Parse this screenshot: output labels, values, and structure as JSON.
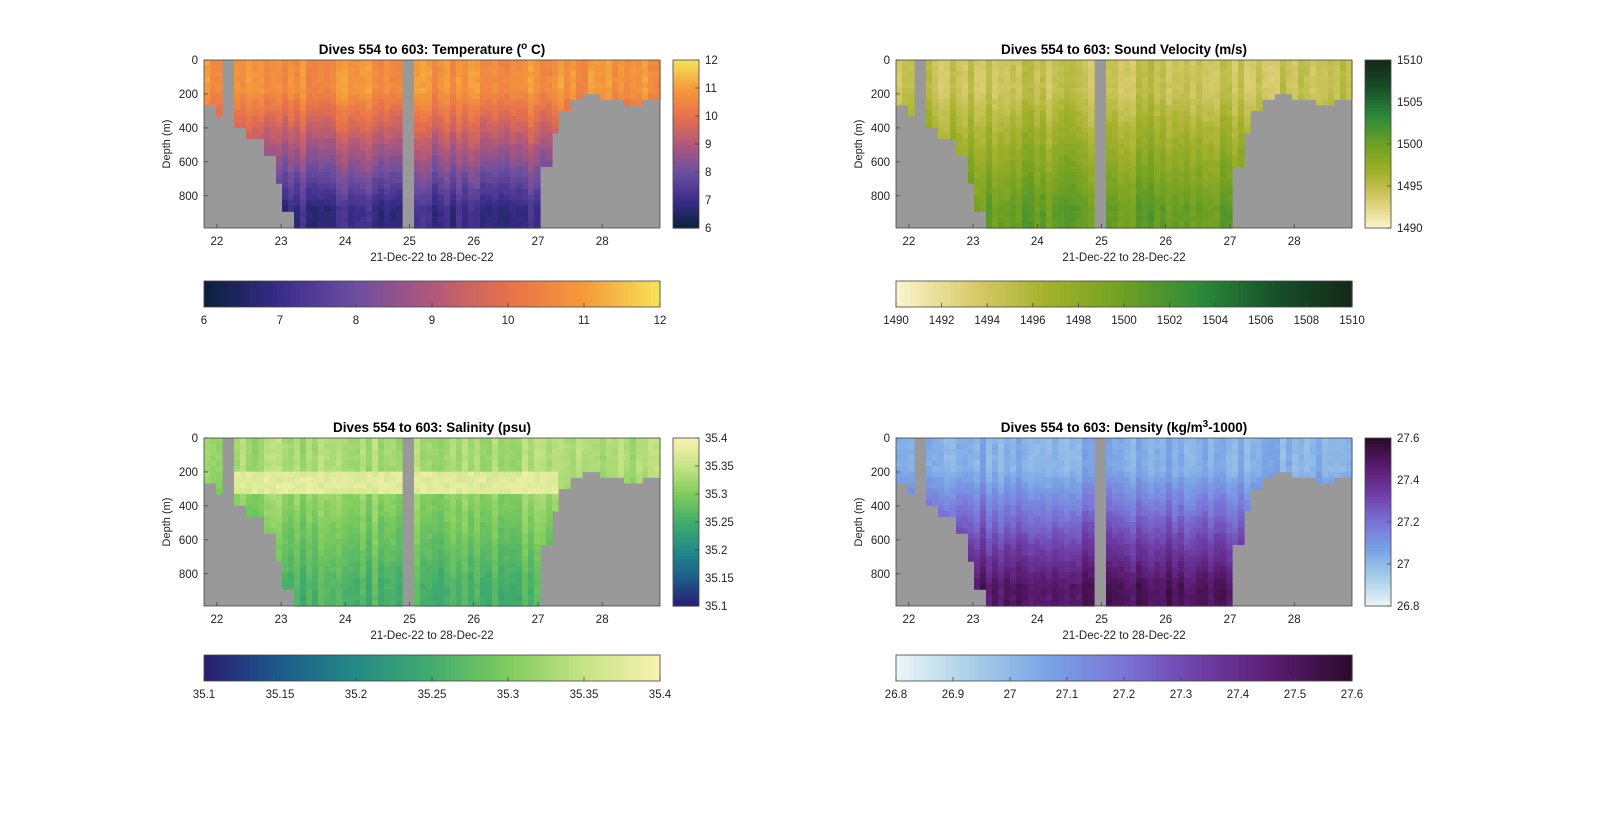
{
  "figure": {
    "background": "#ffffff",
    "nodata_color": "#999999"
  },
  "chart_data": [
    {
      "type": "heatmap",
      "title_main": "Dives 554 to 603: Temperature (",
      "title_sup": "o",
      "title_tail": " C)",
      "xlabel": "21-Dec-22 to 28-Dec-22",
      "ylabel": "Depth (m)",
      "xticks": [
        "22",
        "23",
        "24",
        "25",
        "26",
        "27",
        "28"
      ],
      "yticks": [
        "0",
        "200",
        "400",
        "600",
        "800"
      ],
      "ylim": [
        0,
        990
      ],
      "colormap": [
        "#08203a",
        "#3a2c8a",
        "#6c4ea0",
        "#b0587a",
        "#e8714c",
        "#f59a3a",
        "#f6e25a"
      ],
      "clim": [
        6,
        12
      ],
      "side_colorbar_ticks": [
        "12",
        "11",
        "10",
        "9",
        "8",
        "7",
        "6"
      ],
      "bottom_colorbar_ticks": [
        "6",
        "7",
        "8",
        "9",
        "10",
        "11",
        "12"
      ],
      "surface_value": 10.8,
      "deep_value": 7.0
    },
    {
      "type": "heatmap",
      "title_main": "Dives 554 to 603: Sound Velocity (m/s)",
      "title_sup": "",
      "title_tail": "",
      "xlabel": "21-Dec-22 to 28-Dec-22",
      "ylabel": "Depth (m)",
      "xticks": [
        "22",
        "23",
        "24",
        "25",
        "26",
        "27",
        "28"
      ],
      "yticks": [
        "0",
        "200",
        "400",
        "600",
        "800"
      ],
      "ylim": [
        0,
        990
      ],
      "colormap": [
        "#fcf5cf",
        "#d9cc6e",
        "#a3b12a",
        "#6fa022",
        "#2d8a3a",
        "#16502a",
        "#142817"
      ],
      "clim": [
        1490,
        1510
      ],
      "side_colorbar_ticks": [
        "1510",
        "1505",
        "1500",
        "1495",
        "1490"
      ],
      "bottom_colorbar_ticks": [
        "1490",
        "1492",
        "1494",
        "1496",
        "1498",
        "1500",
        "1502",
        "1504",
        "1506",
        "1508",
        "1510"
      ],
      "surface_value": 1494.5,
      "deep_value": 1500.5
    },
    {
      "type": "heatmap",
      "title_main": "Dives 554 to 603: Salinity (psu)",
      "title_sup": "",
      "title_tail": "",
      "xlabel": "21-Dec-22 to 28-Dec-22",
      "ylabel": "Depth (m)",
      "xticks": [
        "22",
        "23",
        "24",
        "25",
        "26",
        "27",
        "28"
      ],
      "yticks": [
        "0",
        "200",
        "400",
        "600",
        "800"
      ],
      "ylim": [
        0,
        990
      ],
      "colormap": [
        "#2a1c72",
        "#1c5b8c",
        "#238a86",
        "#42ac6c",
        "#7fcc5c",
        "#c6e486",
        "#f8f2b0"
      ],
      "clim": [
        35.1,
        35.4
      ],
      "side_colorbar_ticks": [
        "35.4",
        "35.35",
        "35.3",
        "35.25",
        "35.2",
        "35.15",
        "35.1"
      ],
      "bottom_colorbar_ticks": [
        "35.1",
        "35.15",
        "35.2",
        "35.25",
        "35.3",
        "35.35",
        "35.4"
      ],
      "surface_value": 35.33,
      "deep_value": 35.26
    },
    {
      "type": "heatmap",
      "title_main": "Dives 554 to 603: Density (kg/m",
      "title_sup": "3",
      "title_tail": "-1000)",
      "xlabel": "21-Dec-22 to 28-Dec-22",
      "ylabel": "Depth (m)",
      "xticks": [
        "22",
        "23",
        "24",
        "25",
        "26",
        "27",
        "28"
      ],
      "yticks": [
        "0",
        "200",
        "400",
        "600",
        "800"
      ],
      "ylim": [
        0,
        990
      ],
      "colormap": [
        "#eef6f6",
        "#a9cfe8",
        "#79a4e6",
        "#7a74d8",
        "#6e3ea6",
        "#5a1a70",
        "#2b0a2a"
      ],
      "clim": [
        26.8,
        27.6
      ],
      "side_colorbar_ticks": [
        "27.6",
        "27.4",
        "27.2",
        "27",
        "26.8"
      ],
      "bottom_colorbar_ticks": [
        "26.8",
        "26.9",
        "27",
        "27.1",
        "27.2",
        "27.3",
        "27.4",
        "27.5",
        "27.6"
      ],
      "surface_value": 27.03,
      "deep_value": 27.5
    }
  ]
}
